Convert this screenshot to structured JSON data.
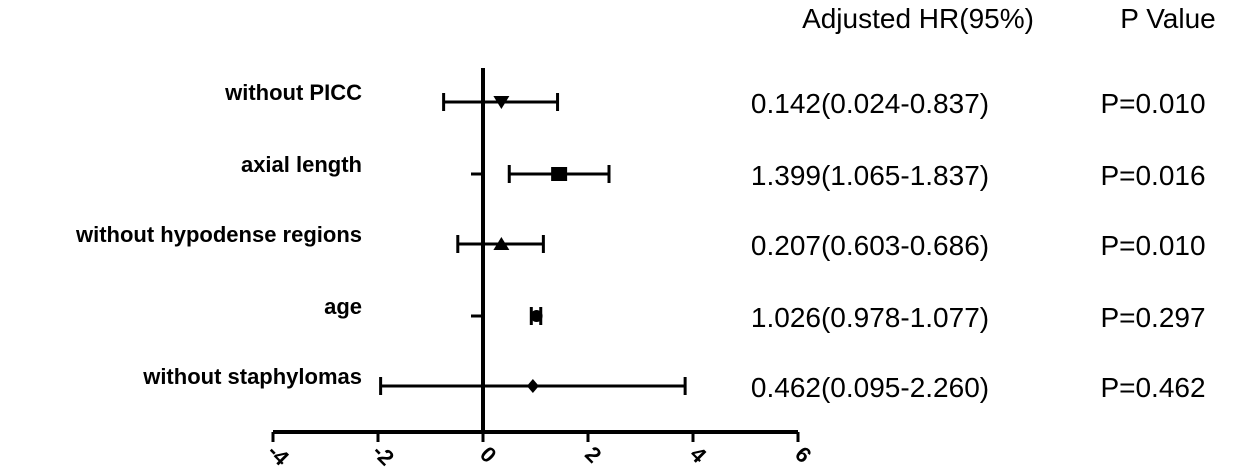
{
  "chart_data": {
    "type": "forest",
    "headers": {
      "hr": "Adjusted HR(95%)",
      "p": "P Value"
    },
    "xlim": [
      -4,
      6
    ],
    "xticks": [
      "-4",
      "-2",
      "0",
      "2",
      "4",
      "6"
    ],
    "rows": [
      {
        "label": "without PICC",
        "estimate": 0.35,
        "lower": -0.75,
        "upper": 1.42,
        "marker": "triangle-down",
        "hr_text": "0.142(0.024-0.837)",
        "p_text": "P=0.010"
      },
      {
        "label": "axial length",
        "estimate": 1.45,
        "lower": 0.5,
        "upper": 2.4,
        "marker": "square",
        "hr_text": "1.399(1.065-1.837)",
        "p_text": "P=0.016"
      },
      {
        "label": "without hypodense regions",
        "estimate": 0.35,
        "lower": -0.48,
        "upper": 1.15,
        "marker": "triangle-up",
        "hr_text": "0.207(0.603-0.686)",
        "p_text": "P=0.010"
      },
      {
        "label": "age",
        "estimate": 1.02,
        "lower": 0.92,
        "upper": 1.1,
        "marker": "circle",
        "hr_text": "1.026(0.978-1.077)",
        "p_text": "P=0.297"
      },
      {
        "label": "without staphylomas",
        "estimate": 0.95,
        "lower": -1.95,
        "upper": 3.85,
        "marker": "diamond",
        "hr_text": "0.462(0.095-2.260)",
        "p_text": "P=0.462"
      }
    ]
  }
}
